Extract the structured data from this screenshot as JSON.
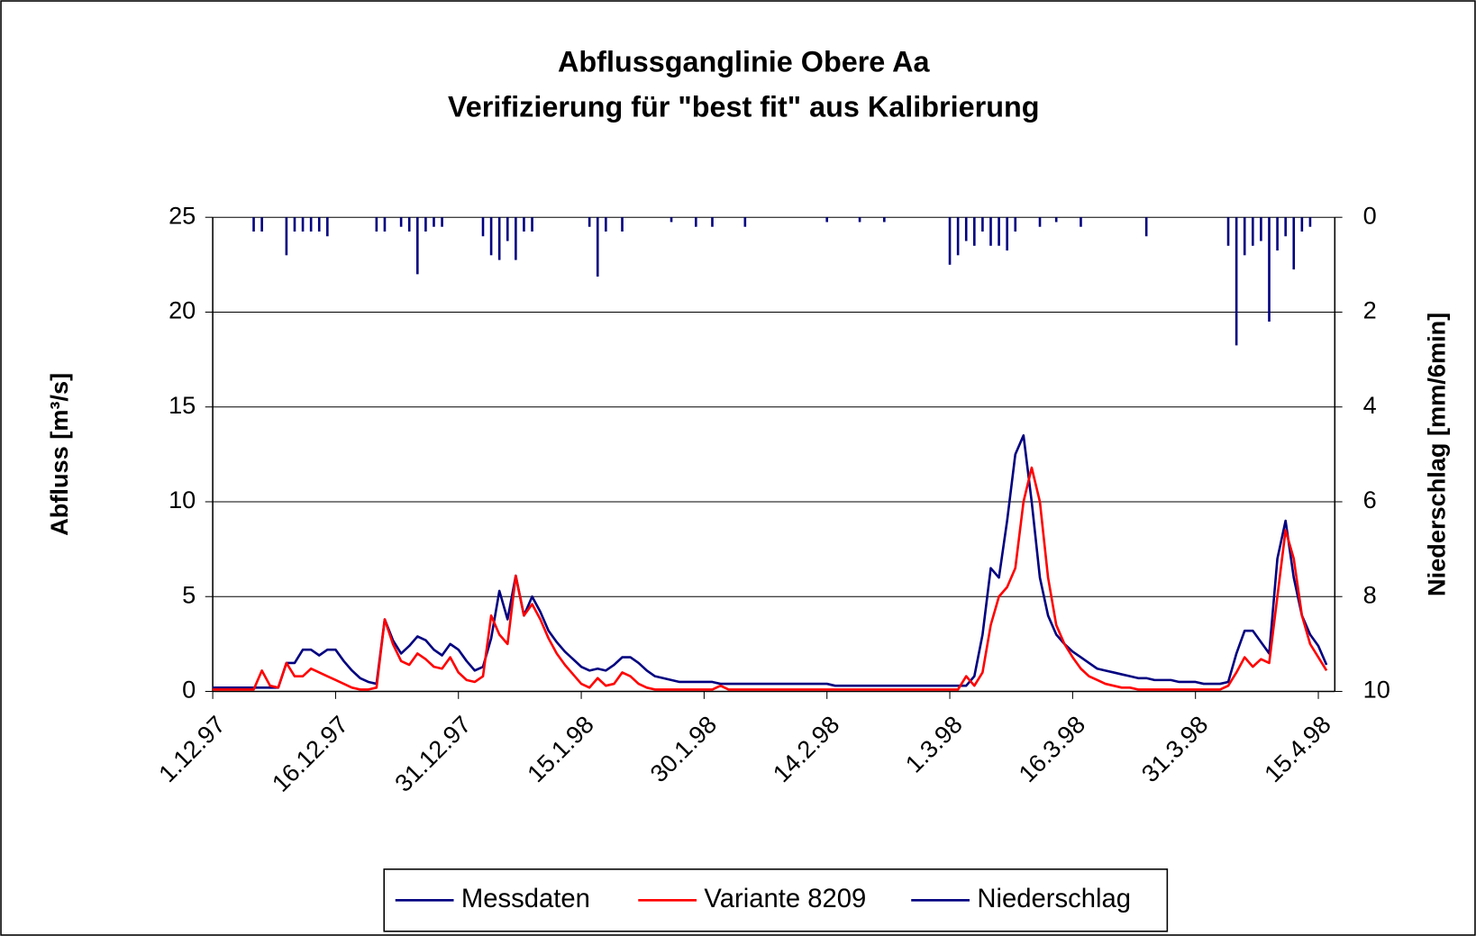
{
  "chart_data": {
    "type": "line",
    "title": "Abflussganglinie Obere Aa",
    "subtitle": "Verifizierung für \"best fit\" aus Kalibrierung",
    "y_label": "Abfluss [m³/s]",
    "y2_label": "Niederschlag [mm/6min]",
    "x": [
      "1.12.97",
      "2.12.97",
      "3.12.97",
      "4.12.97",
      "5.12.97",
      "6.12.97",
      "7.12.97",
      "8.12.97",
      "9.12.97",
      "10.12.97",
      "11.12.97",
      "12.12.97",
      "13.12.97",
      "14.12.97",
      "15.12.97",
      "16.12.97",
      "17.12.97",
      "18.12.97",
      "19.12.97",
      "20.12.97",
      "21.12.97",
      "22.12.97",
      "23.12.97",
      "24.12.97",
      "25.12.97",
      "26.12.97",
      "27.12.97",
      "28.12.97",
      "29.12.97",
      "30.12.97",
      "31.12.97",
      "1.1.98",
      "2.1.98",
      "3.1.98",
      "4.1.98",
      "5.1.98",
      "6.1.98",
      "7.1.98",
      "8.1.98",
      "9.1.98",
      "10.1.98",
      "11.1.98",
      "12.1.98",
      "13.1.98",
      "14.1.98",
      "15.1.98",
      "16.1.98",
      "17.1.98",
      "18.1.98",
      "19.1.98",
      "20.1.98",
      "21.1.98",
      "22.1.98",
      "23.1.98",
      "24.1.98",
      "25.1.98",
      "26.1.98",
      "27.1.98",
      "28.1.98",
      "29.1.98",
      "30.1.98",
      "31.1.98",
      "1.2.98",
      "2.2.98",
      "3.2.98",
      "4.2.98",
      "5.2.98",
      "6.2.98",
      "7.2.98",
      "8.2.98",
      "9.2.98",
      "10.2.98",
      "11.2.98",
      "12.2.98",
      "13.2.98",
      "14.2.98",
      "15.2.98",
      "16.2.98",
      "17.2.98",
      "18.2.98",
      "19.2.98",
      "20.2.98",
      "21.2.98",
      "22.2.98",
      "23.2.98",
      "24.2.98",
      "25.2.98",
      "26.2.98",
      "27.2.98",
      "28.2.98",
      "1.3.98",
      "2.3.98",
      "3.3.98",
      "4.3.98",
      "5.3.98",
      "6.3.98",
      "7.3.98",
      "8.3.98",
      "9.3.98",
      "10.3.98",
      "11.3.98",
      "12.3.98",
      "13.3.98",
      "14.3.98",
      "15.3.98",
      "16.3.98",
      "17.3.98",
      "18.3.98",
      "19.3.98",
      "20.3.98",
      "21.3.98",
      "22.3.98",
      "23.3.98",
      "24.3.98",
      "25.3.98",
      "26.3.98",
      "27.3.98",
      "28.3.98",
      "29.3.98",
      "30.3.98",
      "31.3.98",
      "1.4.98",
      "2.4.98",
      "3.4.98",
      "4.4.98",
      "5.4.98",
      "6.4.98",
      "7.4.98",
      "8.4.98",
      "9.4.98",
      "10.4.98",
      "11.4.98",
      "12.4.98",
      "13.4.98",
      "14.4.98",
      "15.4.98",
      "16.4.98"
    ],
    "xticks": [
      "1.12.97",
      "16.12.97",
      "31.12.97",
      "15.1.98",
      "30.1.98",
      "14.2.98",
      "1.3.98",
      "16.3.98",
      "31.3.98",
      "15.4.98"
    ],
    "ylim": [
      0,
      25
    ],
    "yticks": [
      0,
      5,
      10,
      15,
      20,
      25
    ],
    "y2lim": [
      0,
      10
    ],
    "y2ticks": [
      0,
      2,
      4,
      6,
      8,
      10
    ],
    "y2_inverted": true,
    "grid": true,
    "legend": "bottom",
    "series": [
      {
        "name": "Messdaten",
        "color": "#000080",
        "style": "line",
        "values": [
          0.2,
          0.2,
          0.2,
          0.2,
          0.2,
          0.2,
          0.2,
          0.2,
          0.2,
          1.5,
          1.5,
          2.2,
          2.2,
          1.9,
          2.2,
          2.2,
          1.6,
          1.1,
          0.7,
          0.5,
          0.4,
          3.8,
          2.7,
          2.0,
          2.4,
          2.9,
          2.7,
          2.2,
          1.9,
          2.5,
          2.2,
          1.6,
          1.1,
          1.3,
          2.8,
          5.3,
          3.8,
          6.1,
          4.0,
          5.0,
          4.2,
          3.2,
          2.6,
          2.1,
          1.7,
          1.3,
          1.1,
          1.2,
          1.1,
          1.4,
          1.8,
          1.8,
          1.5,
          1.1,
          0.8,
          0.7,
          0.6,
          0.5,
          0.5,
          0.5,
          0.5,
          0.5,
          0.4,
          0.4,
          0.4,
          0.4,
          0.4,
          0.4,
          0.4,
          0.4,
          0.4,
          0.4,
          0.4,
          0.4,
          0.4,
          0.4,
          0.3,
          0.3,
          0.3,
          0.3,
          0.3,
          0.3,
          0.3,
          0.3,
          0.3,
          0.3,
          0.3,
          0.3,
          0.3,
          0.3,
          0.3,
          0.3,
          0.3,
          0.8,
          3.0,
          6.5,
          6.0,
          9.0,
          12.5,
          13.5,
          10.0,
          6.0,
          4.0,
          3.0,
          2.5,
          2.1,
          1.8,
          1.5,
          1.2,
          1.1,
          1.0,
          0.9,
          0.8,
          0.7,
          0.7,
          0.6,
          0.6,
          0.6,
          0.5,
          0.5,
          0.5,
          0.4,
          0.4,
          0.4,
          0.5,
          2.0,
          3.2,
          3.2,
          2.6,
          2.0,
          7.0,
          9.0,
          6.0,
          4.0,
          3.0,
          2.4,
          1.4
        ]
      },
      {
        "name": "Variante 8209",
        "color": "#ff0000",
        "style": "line",
        "values": [
          0.1,
          0.1,
          0.1,
          0.1,
          0.1,
          0.1,
          1.1,
          0.3,
          0.2,
          1.5,
          0.8,
          0.8,
          1.2,
          1.0,
          0.8,
          0.6,
          0.4,
          0.2,
          0.1,
          0.1,
          0.2,
          3.8,
          2.5,
          1.6,
          1.4,
          2.0,
          1.7,
          1.3,
          1.2,
          1.8,
          1.0,
          0.6,
          0.5,
          0.8,
          4.0,
          3.0,
          2.5,
          6.1,
          4.0,
          4.6,
          3.8,
          2.8,
          2.0,
          1.4,
          0.9,
          0.4,
          0.2,
          0.7,
          0.3,
          0.4,
          1.0,
          0.8,
          0.4,
          0.2,
          0.1,
          0.1,
          0.1,
          0.1,
          0.1,
          0.1,
          0.1,
          0.1,
          0.3,
          0.1,
          0.1,
          0.1,
          0.1,
          0.1,
          0.1,
          0.1,
          0.1,
          0.1,
          0.1,
          0.1,
          0.1,
          0.1,
          0.1,
          0.1,
          0.1,
          0.1,
          0.1,
          0.1,
          0.1,
          0.1,
          0.1,
          0.1,
          0.1,
          0.1,
          0.1,
          0.1,
          0.1,
          0.1,
          0.8,
          0.3,
          1.0,
          3.5,
          5.0,
          5.5,
          6.5,
          10.0,
          11.8,
          10.0,
          6.0,
          3.5,
          2.5,
          1.8,
          1.2,
          0.8,
          0.6,
          0.4,
          0.3,
          0.2,
          0.2,
          0.1,
          0.1,
          0.1,
          0.1,
          0.1,
          0.1,
          0.1,
          0.1,
          0.1,
          0.1,
          0.1,
          0.3,
          1.0,
          1.8,
          1.3,
          1.7,
          1.5,
          5.0,
          8.5,
          7.0,
          4.0,
          2.5,
          1.8,
          1.1
        ]
      },
      {
        "name": "Niederschlag",
        "color": "#000080",
        "style": "bar",
        "axis": "y2",
        "values": [
          0,
          0,
          0,
          0,
          0,
          0.3,
          0.3,
          0,
          0,
          0.8,
          0.3,
          0.3,
          0.3,
          0.3,
          0.4,
          0,
          0,
          0,
          0,
          0,
          0.3,
          0.3,
          0,
          0.2,
          0.3,
          1.2,
          0.3,
          0.2,
          0.2,
          0,
          0,
          0,
          0,
          0.4,
          0.8,
          0.9,
          0.5,
          0.9,
          0.3,
          0.3,
          0,
          0,
          0,
          0,
          0,
          0,
          0.2,
          1.25,
          0.3,
          0,
          0.3,
          0,
          0,
          0,
          0,
          0,
          0.1,
          0,
          0,
          0.2,
          0,
          0.2,
          0,
          0,
          0,
          0.2,
          0,
          0,
          0,
          0,
          0,
          0,
          0,
          0,
          0,
          0.1,
          0,
          0,
          0,
          0.1,
          0,
          0,
          0.1,
          0,
          0,
          0,
          0,
          0,
          0,
          0,
          1.0,
          0.8,
          0.5,
          0.6,
          0.3,
          0.6,
          0.6,
          0.7,
          0.3,
          0,
          0,
          0.2,
          0,
          0.1,
          0,
          0,
          0.2,
          0,
          0,
          0,
          0,
          0,
          0,
          0,
          0.4,
          0,
          0,
          0,
          0,
          0,
          0,
          0,
          0,
          0,
          0.6,
          2.7,
          0.8,
          0.6,
          0.5,
          2.2,
          0.7,
          0.4,
          1.1,
          0.3,
          0.2,
          0,
          0
        ]
      }
    ]
  }
}
